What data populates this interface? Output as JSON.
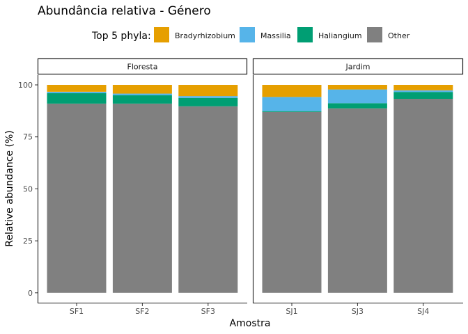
{
  "chart_data": {
    "type": "bar",
    "stacked": true,
    "title": "Abundância relativa - Género",
    "xlabel": "Amostra",
    "ylabel": "Relative abundance (%)",
    "ylim": [
      0,
      100
    ],
    "yticks": [
      0,
      25,
      50,
      75,
      100
    ],
    "legend_title": "Top 5 phyla:",
    "legend_position": "top",
    "legend": [
      {
        "name": "Bradyrhizobium",
        "color": "#E69F00"
      },
      {
        "name": "Massilia",
        "color": "#56B4E9"
      },
      {
        "name": "Haliangium",
        "color": "#009E73"
      },
      {
        "name": "Other",
        "color": "#808080"
      }
    ],
    "facets": [
      {
        "label": "Floresta",
        "samples": [
          {
            "name": "SF1",
            "values": {
              "Other": 91.0,
              "Haliangium": 5.0,
              "Massilia": 0.7,
              "Bradyrhizobium": 3.3
            }
          },
          {
            "name": "SF2",
            "values": {
              "Other": 91.0,
              "Haliangium": 4.0,
              "Massilia": 0.8,
              "Bradyrhizobium": 4.2
            }
          },
          {
            "name": "SF3",
            "values": {
              "Other": 89.7,
              "Haliangium": 4.0,
              "Massilia": 0.9,
              "Bradyrhizobium": 5.4
            }
          }
        ]
      },
      {
        "label": "Jardim",
        "samples": [
          {
            "name": "SJ1",
            "values": {
              "Other": 87.0,
              "Haliangium": 0.4,
              "Massilia": 6.8,
              "Bradyrhizobium": 5.8
            }
          },
          {
            "name": "SJ3",
            "values": {
              "Other": 88.7,
              "Haliangium": 2.5,
              "Massilia": 6.6,
              "Bradyrhizobium": 2.2
            }
          },
          {
            "name": "SJ4",
            "values": {
              "Other": 93.3,
              "Haliangium": 3.3,
              "Massilia": 0.8,
              "Bradyrhizobium": 2.6
            }
          }
        ]
      }
    ]
  }
}
